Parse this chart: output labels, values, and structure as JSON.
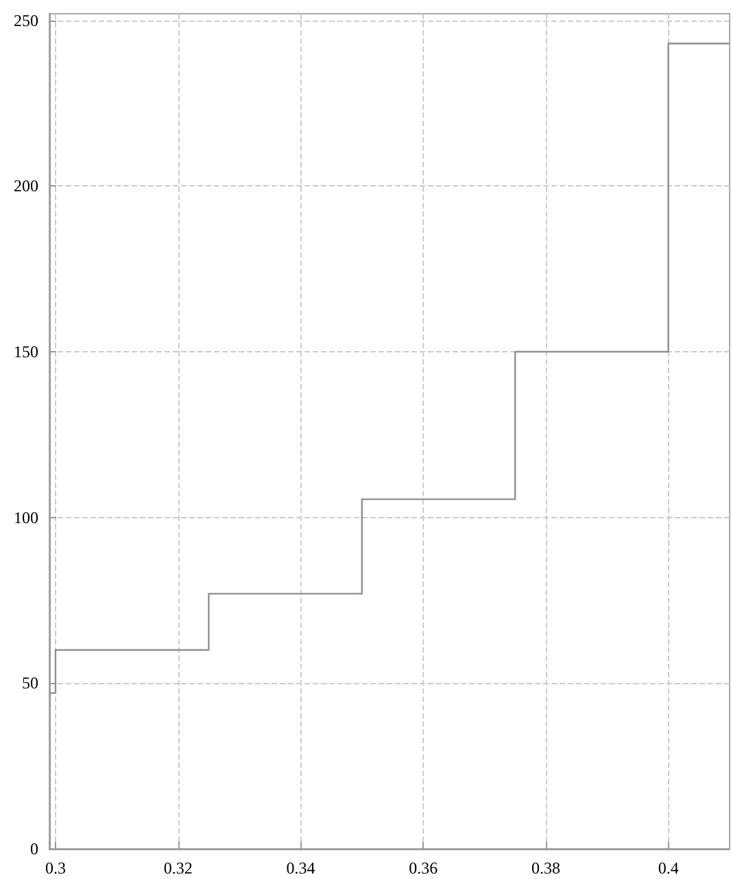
{
  "chart_data": {
    "type": "step",
    "x": [
      0.299,
      0.3,
      0.325,
      0.35,
      0.375,
      0.4,
      0.41
    ],
    "series": [
      {
        "color": "#909090",
        "values": [
          47,
          60,
          77,
          105.5,
          150,
          243,
          243
        ]
      }
    ],
    "xlim": [
      0.299,
      0.41
    ],
    "xticks": [
      0.3,
      0.32,
      0.34,
      0.36,
      0.38,
      0.4
    ],
    "ylim": [
      0,
      252
    ],
    "yticks": [
      0,
      50,
      100,
      150,
      200,
      250
    ],
    "grid": true,
    "marker": "none",
    "line_style": "solid"
  }
}
